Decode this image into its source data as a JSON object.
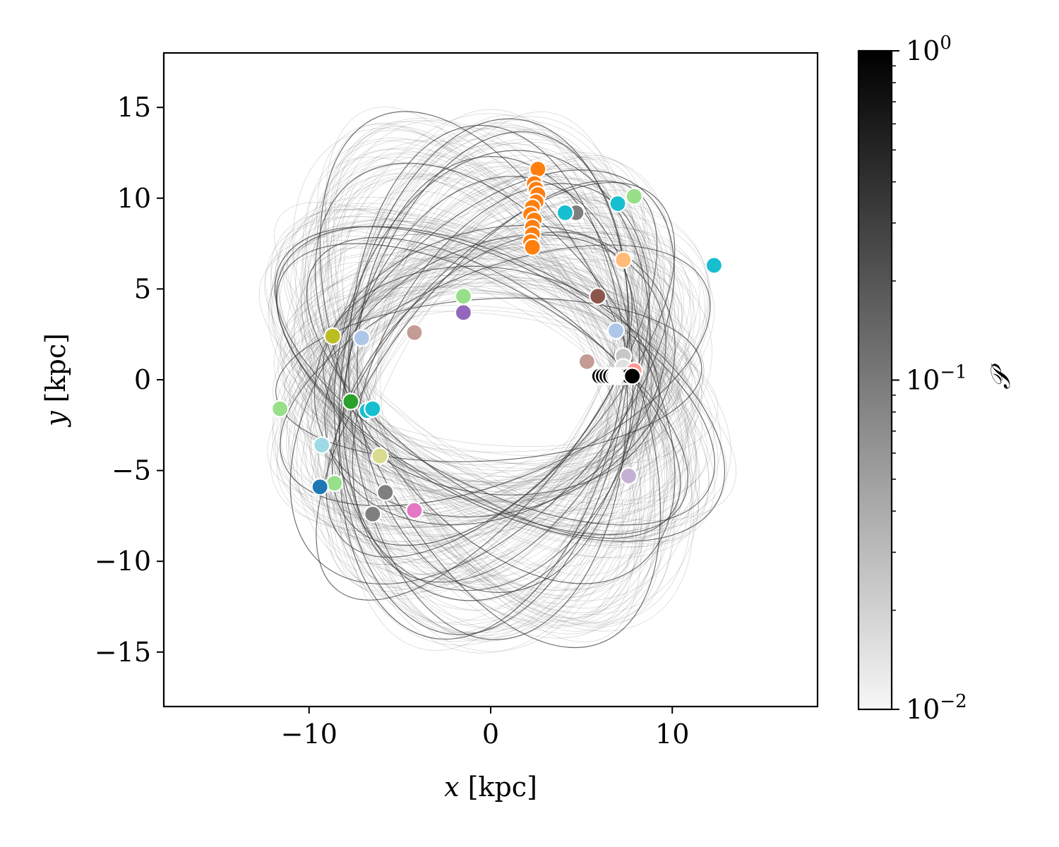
{
  "chart_data": {
    "type": "scatter",
    "xlabel": {
      "var": "x",
      "unit": "[kpc]"
    },
    "ylabel": {
      "var": "y",
      "unit": "[kpc]"
    },
    "xlim": [
      -18,
      18
    ],
    "ylim": [
      -18,
      18
    ],
    "xticks": [
      {
        "v": -10,
        "label": "−10"
      },
      {
        "v": 0,
        "label": "0"
      },
      {
        "v": 10,
        "label": "10"
      }
    ],
    "yticks": [
      {
        "v": 15,
        "label": "15"
      },
      {
        "v": 10,
        "label": "10"
      },
      {
        "v": 5,
        "label": "5"
      },
      {
        "v": 0,
        "label": "0"
      },
      {
        "v": -5,
        "label": "−5"
      },
      {
        "v": -10,
        "label": "−10"
      },
      {
        "v": -15,
        "label": "−15"
      }
    ],
    "background": "orbit density traces (grayscale)",
    "colorbar": {
      "label": "𝒫",
      "scale": "log",
      "range": [
        0.01,
        1
      ],
      "ticks": [
        {
          "v": 1,
          "base": "10",
          "exp": "0"
        },
        {
          "v": 0.1,
          "base": "10",
          "exp": "−1"
        },
        {
          "v": 0.01,
          "base": "10",
          "exp": "−2"
        }
      ],
      "colors": [
        "#f7f7f7",
        "#000000"
      ]
    },
    "points": [
      {
        "x": 2.6,
        "y": 11.6,
        "color": "#ff7f0e"
      },
      {
        "x": 2.4,
        "y": 10.8,
        "color": "#ff7f0e"
      },
      {
        "x": 2.5,
        "y": 10.5,
        "color": "#ff7f0e"
      },
      {
        "x": 2.6,
        "y": 10.2,
        "color": "#ff7f0e"
      },
      {
        "x": 2.5,
        "y": 9.8,
        "color": "#ff7f0e"
      },
      {
        "x": 2.3,
        "y": 9.5,
        "color": "#ff7f0e"
      },
      {
        "x": 2.2,
        "y": 9.1,
        "color": "#ff7f0e"
      },
      {
        "x": 2.4,
        "y": 8.8,
        "color": "#ff7f0e"
      },
      {
        "x": 2.3,
        "y": 8.4,
        "color": "#ff7f0e"
      },
      {
        "x": 2.3,
        "y": 8.0,
        "color": "#ff7f0e"
      },
      {
        "x": 2.2,
        "y": 7.6,
        "color": "#ff7f0e"
      },
      {
        "x": 2.3,
        "y": 7.3,
        "color": "#ff7f0e"
      },
      {
        "x": 4.7,
        "y": 9.2,
        "color": "#7f7f7f"
      },
      {
        "x": 4.1,
        "y": 9.2,
        "color": "#17becf"
      },
      {
        "x": 7.9,
        "y": 10.1,
        "color": "#98df8a"
      },
      {
        "x": 7.0,
        "y": 9.7,
        "color": "#17becf"
      },
      {
        "x": 7.3,
        "y": 6.6,
        "color": "#ffbb78"
      },
      {
        "x": 12.3,
        "y": 6.3,
        "color": "#17becf"
      },
      {
        "x": 5.9,
        "y": 4.6,
        "color": "#8c564b"
      },
      {
        "x": -1.5,
        "y": 4.6,
        "color": "#98df8a"
      },
      {
        "x": -1.5,
        "y": 3.7,
        "color": "#9467bd"
      },
      {
        "x": 6.9,
        "y": 2.7,
        "color": "#aec7e8"
      },
      {
        "x": -4.2,
        "y": 2.6,
        "color": "#c49c94"
      },
      {
        "x": -8.7,
        "y": 2.4,
        "color": "#bcbd22"
      },
      {
        "x": -7.1,
        "y": 2.3,
        "color": "#aec7e8"
      },
      {
        "x": 7.3,
        "y": 1.3,
        "color": "#c7c7c7"
      },
      {
        "x": 5.3,
        "y": 1.0,
        "color": "#c49c94"
      },
      {
        "x": 7.3,
        "y": 0.7,
        "color": "#e0e0e0"
      },
      {
        "x": 7.9,
        "y": 0.5,
        "color": "#ff9896"
      },
      {
        "x": 6.0,
        "y": 0.2,
        "color": "#000000"
      },
      {
        "x": 6.2,
        "y": 0.2,
        "color": "#000000"
      },
      {
        "x": 6.4,
        "y": 0.2,
        "color": "#000000"
      },
      {
        "x": 6.6,
        "y": 0.2,
        "color": "#000000"
      },
      {
        "x": 6.8,
        "y": 0.2,
        "color": "#000000"
      },
      {
        "x": 7.0,
        "y": 0.2,
        "color": "#000000"
      },
      {
        "x": 7.2,
        "y": 0.2,
        "color": "#000000"
      },
      {
        "x": 7.4,
        "y": 0.2,
        "color": "#000000"
      },
      {
        "x": 7.6,
        "y": 0.2,
        "color": "#000000"
      },
      {
        "x": 7.8,
        "y": 0.2,
        "color": "#000000"
      },
      {
        "x": 6.9,
        "y": 0.2,
        "color": "#ffffff"
      },
      {
        "x": -7.7,
        "y": -1.2,
        "color": "#2ca02c"
      },
      {
        "x": -6.8,
        "y": -1.7,
        "color": "#17becf"
      },
      {
        "x": -6.5,
        "y": -1.6,
        "color": "#17becf"
      },
      {
        "x": -11.6,
        "y": -1.6,
        "color": "#98df8a"
      },
      {
        "x": -9.3,
        "y": -3.6,
        "color": "#9edae5"
      },
      {
        "x": -6.1,
        "y": -4.2,
        "color": "#dbdb8d"
      },
      {
        "x": 7.6,
        "y": -5.3,
        "color": "#c5b0d5"
      },
      {
        "x": -8.6,
        "y": -5.7,
        "color": "#98df8a"
      },
      {
        "x": -9.4,
        "y": -5.9,
        "color": "#1f77b4"
      },
      {
        "x": -5.8,
        "y": -6.2,
        "color": "#7f7f7f"
      },
      {
        "x": -6.5,
        "y": -7.4,
        "color": "#7f7f7f"
      },
      {
        "x": -4.2,
        "y": -7.2,
        "color": "#e377c2"
      }
    ]
  }
}
